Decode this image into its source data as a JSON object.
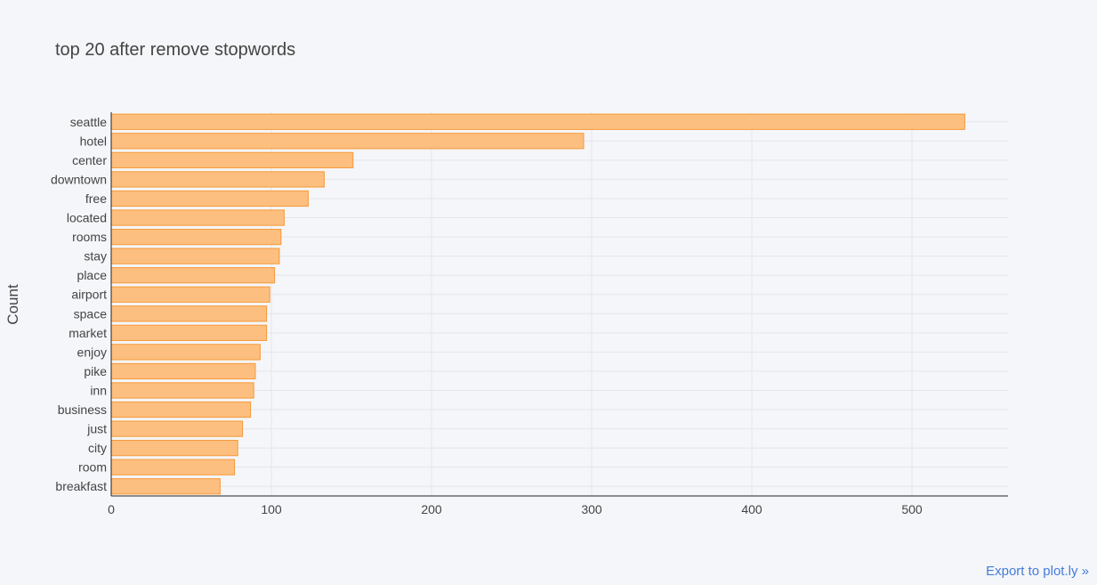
{
  "chart_data": {
    "type": "bar",
    "orientation": "horizontal",
    "title": "top 20 after remove stopwords",
    "xlabel": "",
    "ylabel": "Count",
    "xlim": [
      0,
      560
    ],
    "xticks": [
      0,
      100,
      200,
      300,
      400,
      500
    ],
    "grid": true,
    "bar_color": "#fdbf7f",
    "bar_border_color": "#f59a3a",
    "categories": [
      "seattle",
      "hotel",
      "center",
      "downtown",
      "free",
      "located",
      "rooms",
      "stay",
      "place",
      "airport",
      "space",
      "market",
      "enjoy",
      "pike",
      "inn",
      "business",
      "just",
      "city",
      "room",
      "breakfast"
    ],
    "values": [
      533,
      295,
      151,
      133,
      123,
      108,
      106,
      105,
      102,
      99,
      97,
      97,
      93,
      90,
      89,
      87,
      82,
      79,
      77,
      68
    ]
  },
  "footer": {
    "export_label": "Export to plot.ly »"
  }
}
